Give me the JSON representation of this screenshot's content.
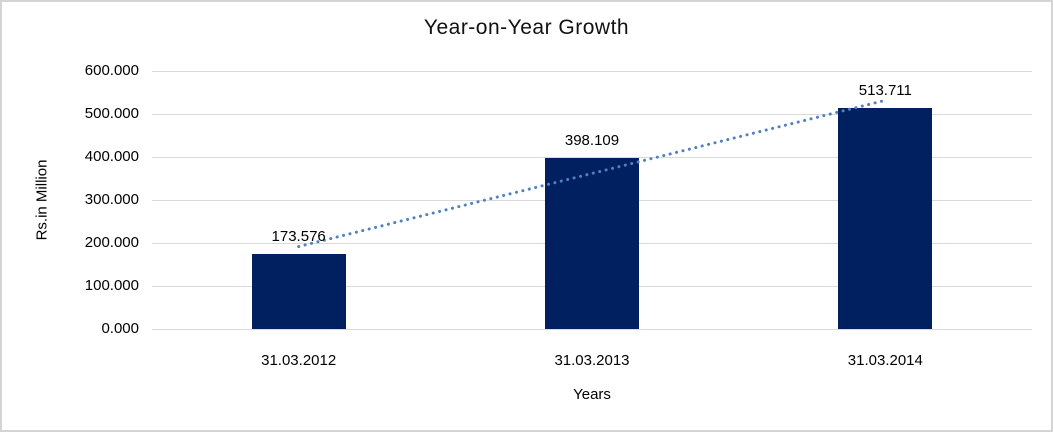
{
  "chart_data": {
    "type": "bar",
    "title": "Year-on-Year Growth",
    "categories": [
      "31.03.2012",
      "31.03.2013",
      "31.03.2014"
    ],
    "values": [
      173.576,
      398.109,
      513.711
    ],
    "data_labels": [
      "173.576",
      "398.109",
      "513.711"
    ],
    "xlabel": "Years",
    "ylabel": "Rs.in Million",
    "ylim": [
      0,
      600
    ],
    "ytick_step": 100,
    "ytick_labels": [
      "600.000",
      "500.000",
      "400.000",
      "300.000",
      "200.000",
      "100.000",
      "0.000"
    ],
    "grid": true,
    "legend": "none",
    "trendline": {
      "type": "linear",
      "style": "dotted"
    },
    "colors": {
      "bar": "#002060",
      "gridline": "#d9d9d9",
      "trendline": "#4f81bd",
      "text": "#000000",
      "frame_border": "#d4d4d4",
      "background": "#ffffff"
    }
  }
}
